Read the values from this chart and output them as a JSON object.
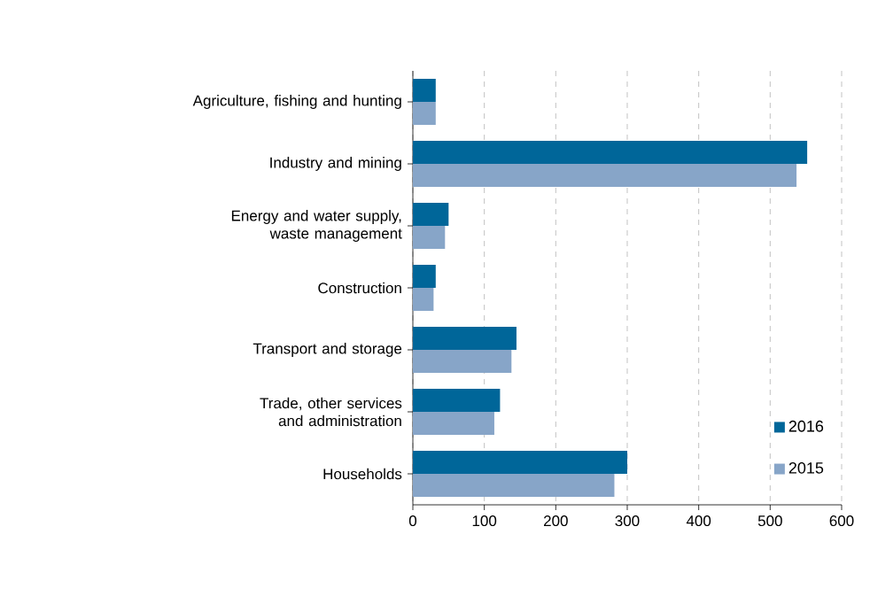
{
  "chart_data": {
    "type": "bar",
    "orientation": "horizontal",
    "categories": [
      "Agriculture, fishing and hunting",
      "Industry and mining",
      "Energy and water supply, waste management",
      "Construction",
      "Transport and storage",
      "Trade, other services and administration",
      "Households"
    ],
    "series": [
      {
        "name": "2016",
        "color": "#006699",
        "values": [
          32,
          552,
          50,
          32,
          145,
          122,
          300
        ]
      },
      {
        "name": "2015",
        "color": "#87a5c8",
        "values": [
          32,
          537,
          45,
          29,
          138,
          114,
          282
        ]
      }
    ],
    "xlim": [
      0,
      600
    ],
    "xticks": [
      0,
      100,
      200,
      300,
      400,
      500,
      600
    ],
    "grid": "x",
    "legend": "bottom right"
  }
}
